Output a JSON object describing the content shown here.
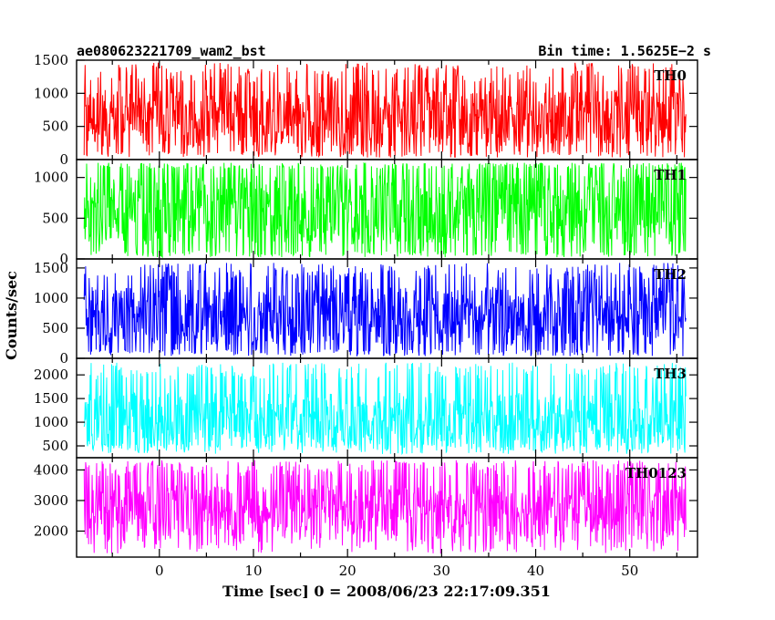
{
  "chart_data": {
    "type": "line",
    "title": "ae080623221709_wam2_bst",
    "subtitle": "Bin time: 1.5625E−2 s",
    "xlabel": "Time [sec] 0 = 2008/06/23 22:17:09.351",
    "ylabel": "Counts/sec",
    "xlim": [
      -8.8,
      57.2
    ],
    "x_ticks": [
      0,
      10,
      20,
      30,
      40,
      50
    ],
    "x_tick_labels": [
      "0",
      "10",
      "20",
      "30",
      "40",
      "50"
    ],
    "data_x_range": [
      -8.0,
      56.0
    ],
    "bin_time_s": 0.015625,
    "panels": [
      {
        "name": "TH0",
        "color": "#ff0000",
        "ylim": [
          0,
          1500
        ],
        "yticks": [
          0,
          500,
          1000,
          1500
        ],
        "mean": 620,
        "typical_min": 130,
        "typical_max": 1150,
        "min": 20,
        "max": 1500
      },
      {
        "name": "TH1",
        "color": "#00ff00",
        "ylim": [
          0,
          1220
        ],
        "yticks": [
          0,
          500,
          1000
        ],
        "mean": 600,
        "typical_min": 100,
        "typical_max": 1100,
        "min": 10,
        "max": 1190
      },
      {
        "name": "TH2",
        "color": "#0000ff",
        "ylim": [
          0,
          1650
        ],
        "yticks": [
          0,
          500,
          1000,
          1500
        ],
        "mean": 700,
        "typical_min": 150,
        "typical_max": 1300,
        "min": 20,
        "max": 1620
      },
      {
        "name": "TH3",
        "color": "#00ffff",
        "ylim": [
          250,
          2350
        ],
        "yticks": [
          500,
          1000,
          1500,
          2000
        ],
        "mean": 1050,
        "typical_min": 550,
        "typical_max": 1900,
        "min": 300,
        "max": 2300
      },
      {
        "name": "TH0123",
        "color": "#ff00ff",
        "ylim": [
          1150,
          4400
        ],
        "yticks": [
          2000,
          3000,
          4000
        ],
        "mean": 2650,
        "typical_min": 1800,
        "typical_max": 3800,
        "min": 1200,
        "max": 4380
      }
    ]
  }
}
